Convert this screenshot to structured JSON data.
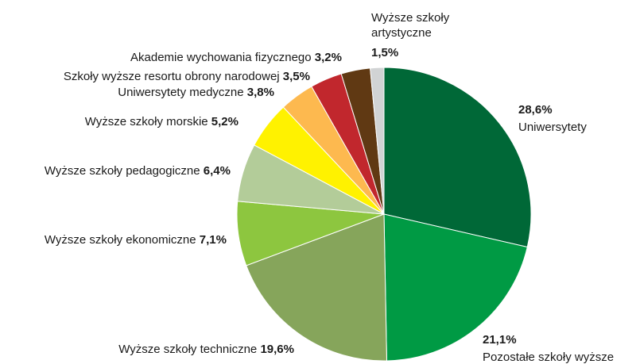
{
  "chart_data": {
    "type": "pie",
    "categories": [
      "Uniwersytety",
      "Pozostałe szkoły wyższe",
      "Wyższe szkoły techniczne",
      "Wyższe szkoły ekonomiczne",
      "Wyższe szkoły pedagogiczne",
      "Wyższe szkoły morskie",
      "Uniwersytety medyczne",
      "Szkoły wyższe resortu obrony narodowej",
      "Akademie wychowania fizycznego",
      "Wyższe szkoły artystyczne"
    ],
    "values": [
      28.6,
      21.1,
      19.6,
      7.1,
      6.4,
      5.2,
      3.8,
      3.5,
      3.2,
      1.5
    ],
    "value_labels": [
      "28,6%",
      "21,1%",
      "19,6%",
      "7,1%",
      "6,4%",
      "5,2%",
      "3,8%",
      "3,5%",
      "3,2%",
      "1,5%"
    ],
    "colors": [
      "#006837",
      "#009a44",
      "#86a55b",
      "#8dc63f",
      "#b3cc99",
      "#fff200",
      "#fdb94f",
      "#c1272d",
      "#603913",
      "#d1d3d4"
    ]
  }
}
